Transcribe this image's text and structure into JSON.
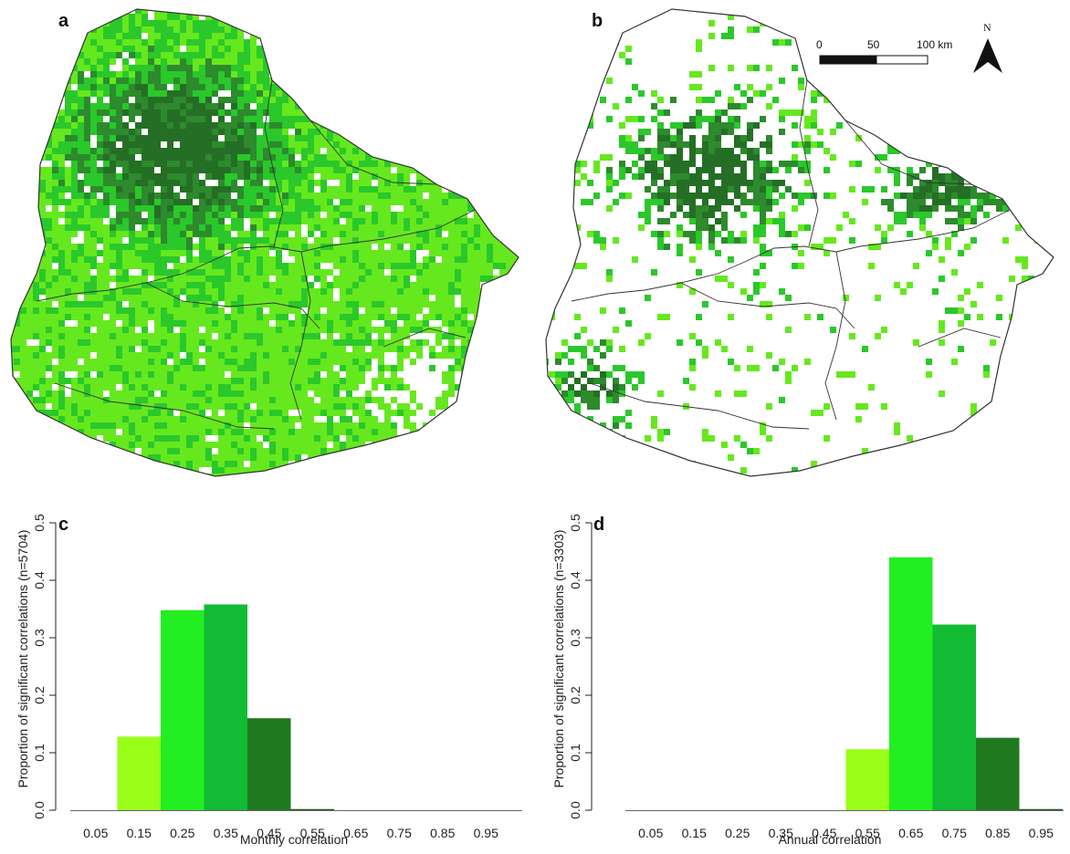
{
  "colors": {
    "bin_0_15": "#99ff1a",
    "bin_0_25": "#22ee22",
    "bin_0_35": "#11bb33",
    "bin_0_45": "#1f7a1f",
    "bin_0_55": "#155f15",
    "map_light": "#66e81e",
    "map_mid": "#2ac82a",
    "map_dark": "#2d8a2d",
    "map_darkest": "#256e25",
    "outline": "#333333"
  },
  "maps": [
    {
      "letter": "a"
    },
    {
      "letter": "b",
      "scale_bar": {
        "labels": [
          "0",
          "50",
          "100 km"
        ]
      },
      "north_arrow": {
        "label": "N"
      }
    }
  ],
  "chart_data": [
    {
      "panel": "c",
      "type": "bar",
      "categories": [
        "0.05",
        "0.15",
        "0.25",
        "0.35",
        "0.45",
        "0.55",
        "0.65",
        "0.75",
        "0.85",
        "0.95"
      ],
      "values": [
        0.0,
        0.128,
        0.348,
        0.358,
        0.16,
        0.002,
        0.0,
        0.0,
        0.0,
        0.0
      ],
      "bar_colors": [
        "#99ff1a",
        "#99ff1a",
        "#22ee22",
        "#11bb33",
        "#1f7a1f",
        "#155f15",
        "#155f15",
        "#155f15",
        "#155f15",
        "#155f15"
      ],
      "xlabel": "Monthly correlation",
      "ylabel": "Proportion of significant correlations (n=5704)",
      "ylim": [
        0,
        0.5
      ],
      "yticks": [
        "0.0",
        "0.1",
        "0.2",
        "0.3",
        "0.4",
        "0.5"
      ]
    },
    {
      "panel": "d",
      "type": "bar",
      "categories": [
        "0.05",
        "0.15",
        "0.25",
        "0.35",
        "0.45",
        "0.55",
        "0.65",
        "0.75",
        "0.85",
        "0.95"
      ],
      "values": [
        0.0,
        0.0,
        0.0,
        0.0,
        0.0,
        0.106,
        0.44,
        0.323,
        0.126,
        0.002
      ],
      "bar_colors": [
        "#99ff1a",
        "#99ff1a",
        "#99ff1a",
        "#99ff1a",
        "#99ff1a",
        "#99ff1a",
        "#22ee22",
        "#11bb33",
        "#1f7a1f",
        "#155f15"
      ],
      "xlabel": "Annual correlation",
      "ylabel": "Proportion of significant correlations (n=3303)",
      "ylim": [
        0,
        0.5
      ],
      "yticks": [
        "0.0",
        "0.1",
        "0.2",
        "0.3",
        "0.4",
        "0.5"
      ]
    }
  ]
}
